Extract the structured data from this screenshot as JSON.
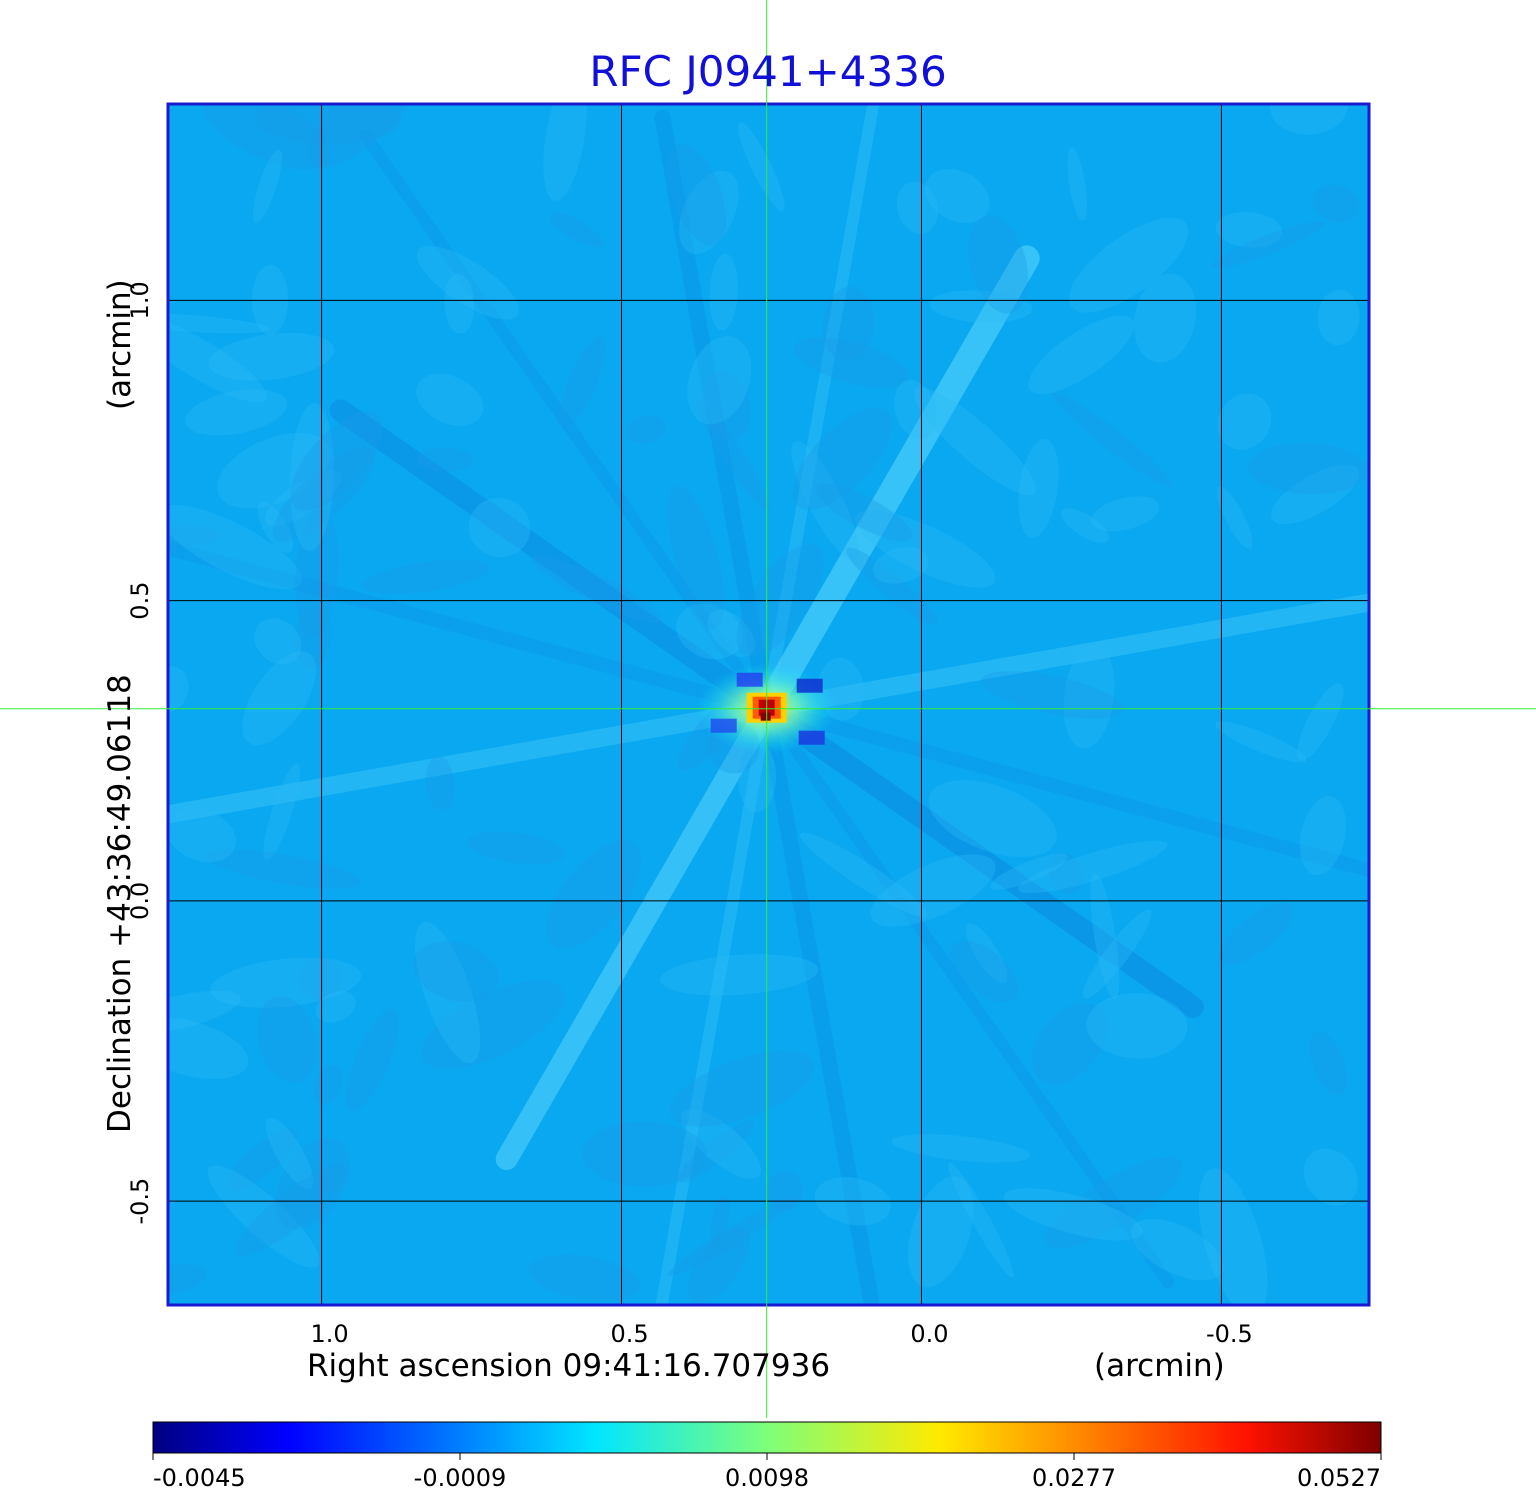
{
  "chart_data": {
    "type": "heatmap",
    "title": "RFC J0941+4336",
    "xlabel": "Right ascension  09:41:16.707936",
    "xunit": "(arcmin)",
    "ylabel": "Declination  +43:36:49.06118",
    "yunit": "(arcmin)",
    "x_ticks": [
      1.0,
      0.5,
      0.0,
      -0.5
    ],
    "x_tick_labels": [
      "1.0",
      "0.5",
      "0.0",
      "-0.5"
    ],
    "y_ticks": [
      1.0,
      0.5,
      0.0,
      -0.5
    ],
    "y_tick_labels": [
      "1.0",
      "0.5",
      "0.0",
      "-0.5"
    ],
    "xlim": [
      1.256,
      -0.746
    ],
    "ylim": [
      -0.673,
      1.327
    ],
    "grid": true,
    "crosshair": {
      "x": 0.258,
      "y": 0.32
    },
    "peak": {
      "x": 0.258,
      "y": 0.32,
      "value": 0.0527
    },
    "colorbar": {
      "ticks": [
        -0.0045,
        -0.0009,
        0.0098,
        0.0277,
        0.0527
      ],
      "tick_labels": [
        "-0.0045",
        "-0.0009",
        "0.0098",
        "0.0277",
        "0.0527"
      ],
      "colormap": "jet"
    },
    "colors": {
      "title": "#1010d8",
      "frame": "#1a1ad0",
      "grid": "#000000",
      "crosshair": "#33ee33",
      "background": "#0aa8f0"
    }
  }
}
